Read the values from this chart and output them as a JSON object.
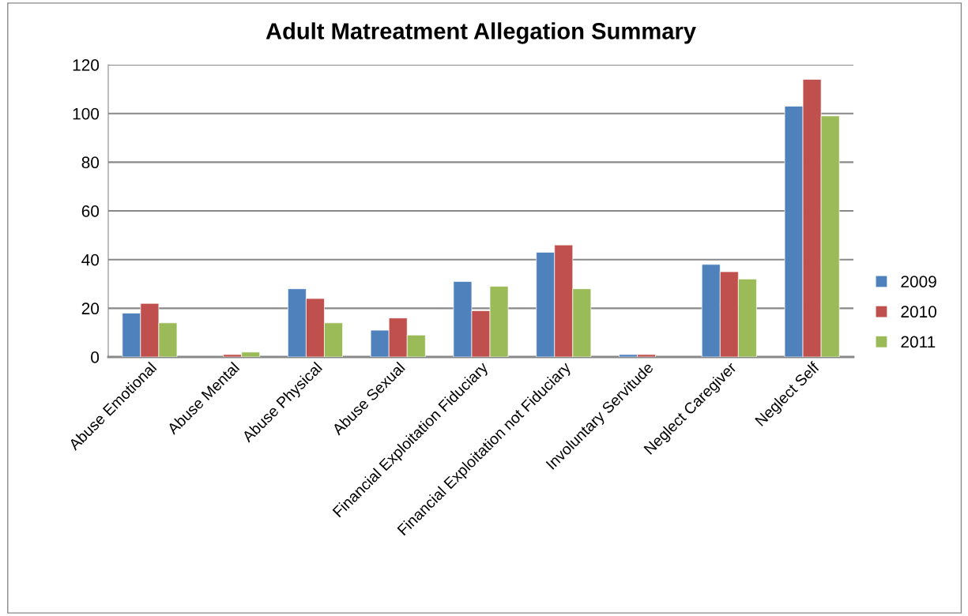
{
  "chart_data": {
    "type": "bar",
    "title": "Adult Matreatment Allegation Summary",
    "categories": [
      "Abuse Emotional",
      "Abuse Mental",
      "Abuse Physical",
      "Abuse Sexual",
      "Financial Exploitation Fiduciary",
      "Financial Exploitation not Fiduciary",
      "Involuntary Servitude",
      "Neglect Caregiver",
      "Neglect Self"
    ],
    "series": [
      {
        "name": "2009",
        "color": "#4f81bd",
        "values": [
          18,
          null,
          28,
          11,
          31,
          43,
          1,
          38,
          103
        ]
      },
      {
        "name": "2010",
        "color": "#c0504d",
        "values": [
          22,
          1,
          24,
          16,
          19,
          46,
          1,
          35,
          114
        ]
      },
      {
        "name": "2011",
        "color": "#9bbb59",
        "values": [
          14,
          2,
          14,
          9,
          29,
          28,
          null,
          32,
          99
        ]
      }
    ],
    "ylim": [
      0,
      120
    ],
    "yticks": [
      0,
      20,
      40,
      60,
      80,
      100,
      120
    ],
    "grid": "y",
    "legend": "right"
  }
}
